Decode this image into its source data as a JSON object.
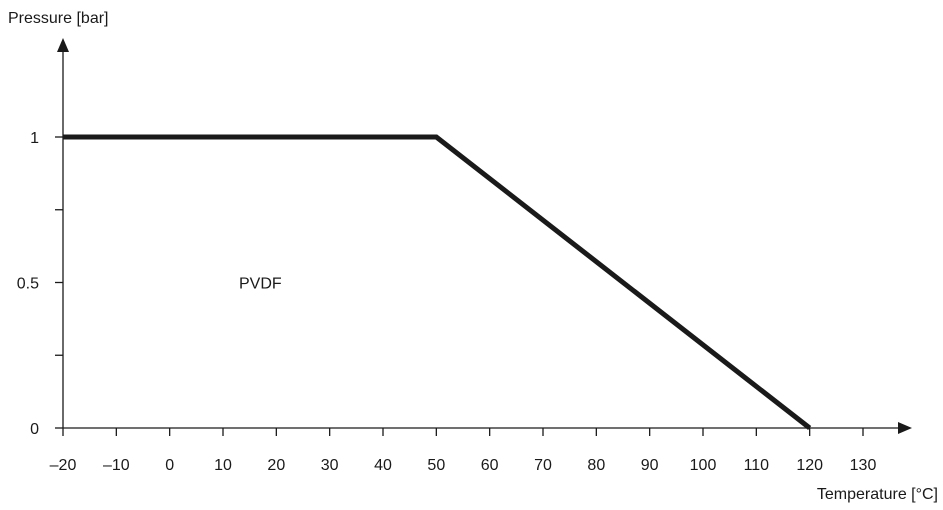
{
  "chart_data": {
    "type": "line",
    "title": "",
    "xlabel": "Temperature [°C]",
    "ylabel": "Pressure [bar]",
    "xlim": [
      -20,
      130
    ],
    "ylim": [
      0,
      1
    ],
    "x_ticks": [
      -20,
      -10,
      0,
      10,
      20,
      30,
      40,
      50,
      60,
      70,
      80,
      90,
      100,
      110,
      120,
      130
    ],
    "x_tick_labels": [
      "–20",
      "–10",
      "0",
      "10",
      "20",
      "30",
      "40",
      "50",
      "60",
      "70",
      "80",
      "90",
      "100",
      "110",
      "120",
      "130"
    ],
    "y_ticks": [
      0,
      0.25,
      0.5,
      0.75,
      1
    ],
    "y_tick_labels": [
      "0",
      "",
      "0.5",
      "",
      "1"
    ],
    "grid": false,
    "series": [
      {
        "name": "",
        "x": [
          -20,
          50,
          120
        ],
        "y": [
          1,
          1,
          0
        ],
        "color": "#1a1a1a"
      }
    ],
    "annotations": [
      {
        "text": "PVDF",
        "x": 13,
        "y": 0.5
      }
    ]
  }
}
